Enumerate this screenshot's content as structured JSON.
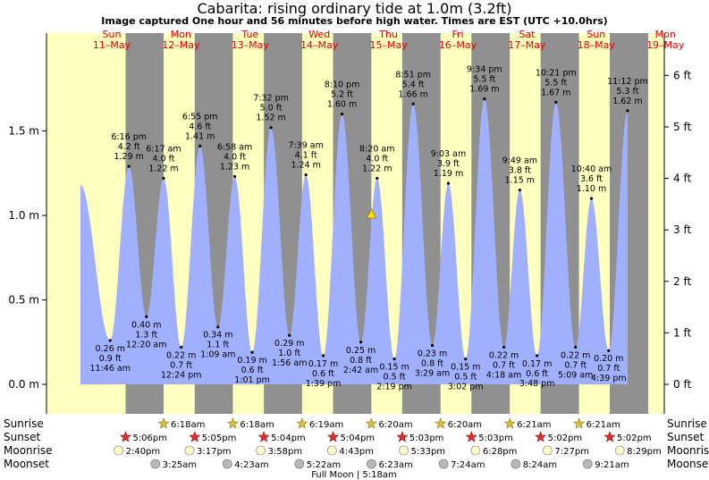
{
  "title": "Cabarita: rising  ordinary tide at 1.0m (3.2ft)",
  "subtitle": "Image captured One hour and 56 minutes before high water. Times are EST (UTC +10.0hrs)",
  "colors": {
    "day": "#ffffc0",
    "night": "#909090",
    "tide": "#a0b0ff",
    "sun": "#ffd800",
    "sunset_star": "#e03030",
    "sunrise_star": "#c8b040",
    "moon_rise": "#ffffc8",
    "moon_set": "#b8b8b8",
    "day_label": "#e00000"
  },
  "chart_data": {
    "type": "area",
    "title": "Cabarita: rising  ordinary tide at 1.0m (3.2ft)",
    "y_axis_left": {
      "label": "m",
      "ticks": [
        "0.0 m",
        "0.5 m",
        "1.0 m",
        "1.5 m"
      ],
      "range": [
        -0.1,
        1.95
      ]
    },
    "y_axis_right": {
      "label": "ft",
      "ticks": [
        "0 ft",
        "1 ft",
        "2 ft",
        "3 ft",
        "4 ft",
        "5 ft",
        "6 ft"
      ]
    },
    "days": [
      {
        "dow": "Sun",
        "date": "11–May"
      },
      {
        "dow": "Mon",
        "date": "12–May"
      },
      {
        "dow": "Tue",
        "date": "13–May"
      },
      {
        "dow": "Wed",
        "date": "14–May"
      },
      {
        "dow": "Thu",
        "date": "15–May"
      },
      {
        "dow": "Fri",
        "date": "16–May"
      },
      {
        "dow": "Sat",
        "date": "17–May"
      },
      {
        "dow": "Sun",
        "date": "18–May"
      },
      {
        "dow": "Mon",
        "date": "19–May"
      }
    ],
    "start_time": "11–May 00:00",
    "end_time": "19–May 24:00",
    "extremes": [
      {
        "type": "low",
        "day": 0,
        "time": "11:46 am",
        "m": 0.26,
        "ft": "0.9 ft",
        "m_label": "0.26 m"
      },
      {
        "type": "high",
        "day": 0,
        "time": "6:16 pm",
        "m": 1.29,
        "ft": "4.2 ft",
        "m_label": "1.29 m"
      },
      {
        "type": "low",
        "day": 1,
        "time": "12:20 am",
        "m": 0.4,
        "ft": "1.3 ft",
        "m_label": "0.40 m"
      },
      {
        "type": "high",
        "day": 1,
        "time": "6:17 am",
        "m": 1.22,
        "ft": "4.0 ft",
        "m_label": "1.22 m"
      },
      {
        "type": "low",
        "day": 1,
        "time": "12:24 pm",
        "m": 0.22,
        "ft": "0.7 ft",
        "m_label": "0.22 m"
      },
      {
        "type": "high",
        "day": 1,
        "time": "6:55 pm",
        "m": 1.41,
        "ft": "4.6 ft",
        "m_label": "1.41 m"
      },
      {
        "type": "low",
        "day": 2,
        "time": "1:09 am",
        "m": 0.34,
        "ft": "1.1 ft",
        "m_label": "0.34 m"
      },
      {
        "type": "high",
        "day": 2,
        "time": "6:58 am",
        "m": 1.23,
        "ft": "4.0 ft",
        "m_label": "1.23 m"
      },
      {
        "type": "low",
        "day": 2,
        "time": "1:01 pm",
        "m": 0.19,
        "ft": "0.6 ft",
        "m_label": "0.19 m"
      },
      {
        "type": "high",
        "day": 2,
        "time": "7:32 pm",
        "m": 1.52,
        "ft": "5.0 ft",
        "m_label": "1.52 m"
      },
      {
        "type": "low",
        "day": 3,
        "time": "1:56 am",
        "m": 0.29,
        "ft": "1.0 ft",
        "m_label": "0.29 m"
      },
      {
        "type": "high",
        "day": 3,
        "time": "7:39 am",
        "m": 1.24,
        "ft": "4.1 ft",
        "m_label": "1.24 m"
      },
      {
        "type": "low",
        "day": 3,
        "time": "1:39 pm",
        "m": 0.17,
        "ft": "0.6 ft",
        "m_label": "0.17 m"
      },
      {
        "type": "high",
        "day": 3,
        "time": "8:10 pm",
        "m": 1.6,
        "ft": "5.2 ft",
        "m_label": "1.60 m"
      },
      {
        "type": "low",
        "day": 4,
        "time": "2:42 am",
        "m": 0.25,
        "ft": "0.8 ft",
        "m_label": "0.25 m"
      },
      {
        "type": "high",
        "day": 4,
        "time": "8:20 am",
        "m": 1.22,
        "ft": "4.0 ft",
        "m_label": "1.22 m"
      },
      {
        "type": "low",
        "day": 4,
        "time": "2:19 pm",
        "m": 0.15,
        "ft": "0.5 ft",
        "m_label": "0.15 m"
      },
      {
        "type": "high",
        "day": 4,
        "time": "8:51 pm",
        "m": 1.66,
        "ft": "5.4 ft",
        "m_label": "1.66 m"
      },
      {
        "type": "low",
        "day": 5,
        "time": "3:29 am",
        "m": 0.23,
        "ft": "0.8 ft",
        "m_label": "0.23 m"
      },
      {
        "type": "high",
        "day": 5,
        "time": "9:03 am",
        "m": 1.19,
        "ft": "3.9 ft",
        "m_label": "1.19 m"
      },
      {
        "type": "low",
        "day": 5,
        "time": "3:02 pm",
        "m": 0.15,
        "ft": "0.5 ft",
        "m_label": "0.15 m"
      },
      {
        "type": "high",
        "day": 5,
        "time": "9:34 pm",
        "m": 1.69,
        "ft": "5.5 ft",
        "m_label": "1.69 m"
      },
      {
        "type": "low",
        "day": 6,
        "time": "4:18 am",
        "m": 0.22,
        "ft": "0.7 ft",
        "m_label": "0.22 m"
      },
      {
        "type": "high",
        "day": 6,
        "time": "9:49 am",
        "m": 1.15,
        "ft": "3.8 ft",
        "m_label": "1.15 m"
      },
      {
        "type": "low",
        "day": 6,
        "time": "3:48 pm",
        "m": 0.17,
        "ft": "0.6 ft",
        "m_label": "0.17 m"
      },
      {
        "type": "high",
        "day": 6,
        "time": "10:21 pm",
        "m": 1.67,
        "ft": "5.5 ft",
        "m_label": "1.67 m"
      },
      {
        "type": "low",
        "day": 7,
        "time": "5:09 am",
        "m": 0.22,
        "ft": "0.7 ft",
        "m_label": "0.22 m"
      },
      {
        "type": "high",
        "day": 7,
        "time": "10:40 am",
        "m": 1.1,
        "ft": "3.6 ft",
        "m_label": "1.10 m"
      },
      {
        "type": "low",
        "day": 7,
        "time": "4:39 pm",
        "m": 0.2,
        "ft": "0.7 ft",
        "m_label": "0.20 m"
      },
      {
        "type": "high",
        "day": 7,
        "time": "11:12 pm",
        "m": 1.62,
        "ft": "5.3 ft",
        "m_label": "1.62 m"
      }
    ],
    "now_marker": {
      "day": 4,
      "time": "6:24 am",
      "m": 1.0
    },
    "sunrise": {
      "label": "Sunrise",
      "times": [
        "6:18am",
        "6:18am",
        "6:19am",
        "6:20am",
        "6:20am",
        "6:21am",
        "6:21am"
      ],
      "days": [
        1,
        2,
        3,
        4,
        5,
        6,
        7
      ]
    },
    "sunset": {
      "label": "Sunset",
      "times": [
        "5:06pm",
        "5:05pm",
        "5:04pm",
        "5:04pm",
        "5:03pm",
        "5:03pm",
        "5:02pm",
        "5:02pm"
      ],
      "days": [
        0,
        1,
        2,
        3,
        4,
        5,
        6,
        7
      ]
    },
    "moonrise": {
      "label": "Moonrise",
      "times": [
        "2:40pm",
        "3:17pm",
        "3:58pm",
        "4:43pm",
        "5:33pm",
        "6:28pm",
        "7:27pm",
        "8:29pm"
      ],
      "days": [
        0,
        1,
        2,
        3,
        4,
        5,
        6,
        7
      ]
    },
    "moonset": {
      "label": "Moonset",
      "times": [
        "3:25am",
        "4:23am",
        "5:22am",
        "6:23am",
        "7:24am",
        "8:24am",
        "9:21am"
      ],
      "days": [
        1,
        2,
        3,
        4,
        5,
        6,
        7
      ]
    },
    "footnote": "Full Moon | 5:18am"
  }
}
